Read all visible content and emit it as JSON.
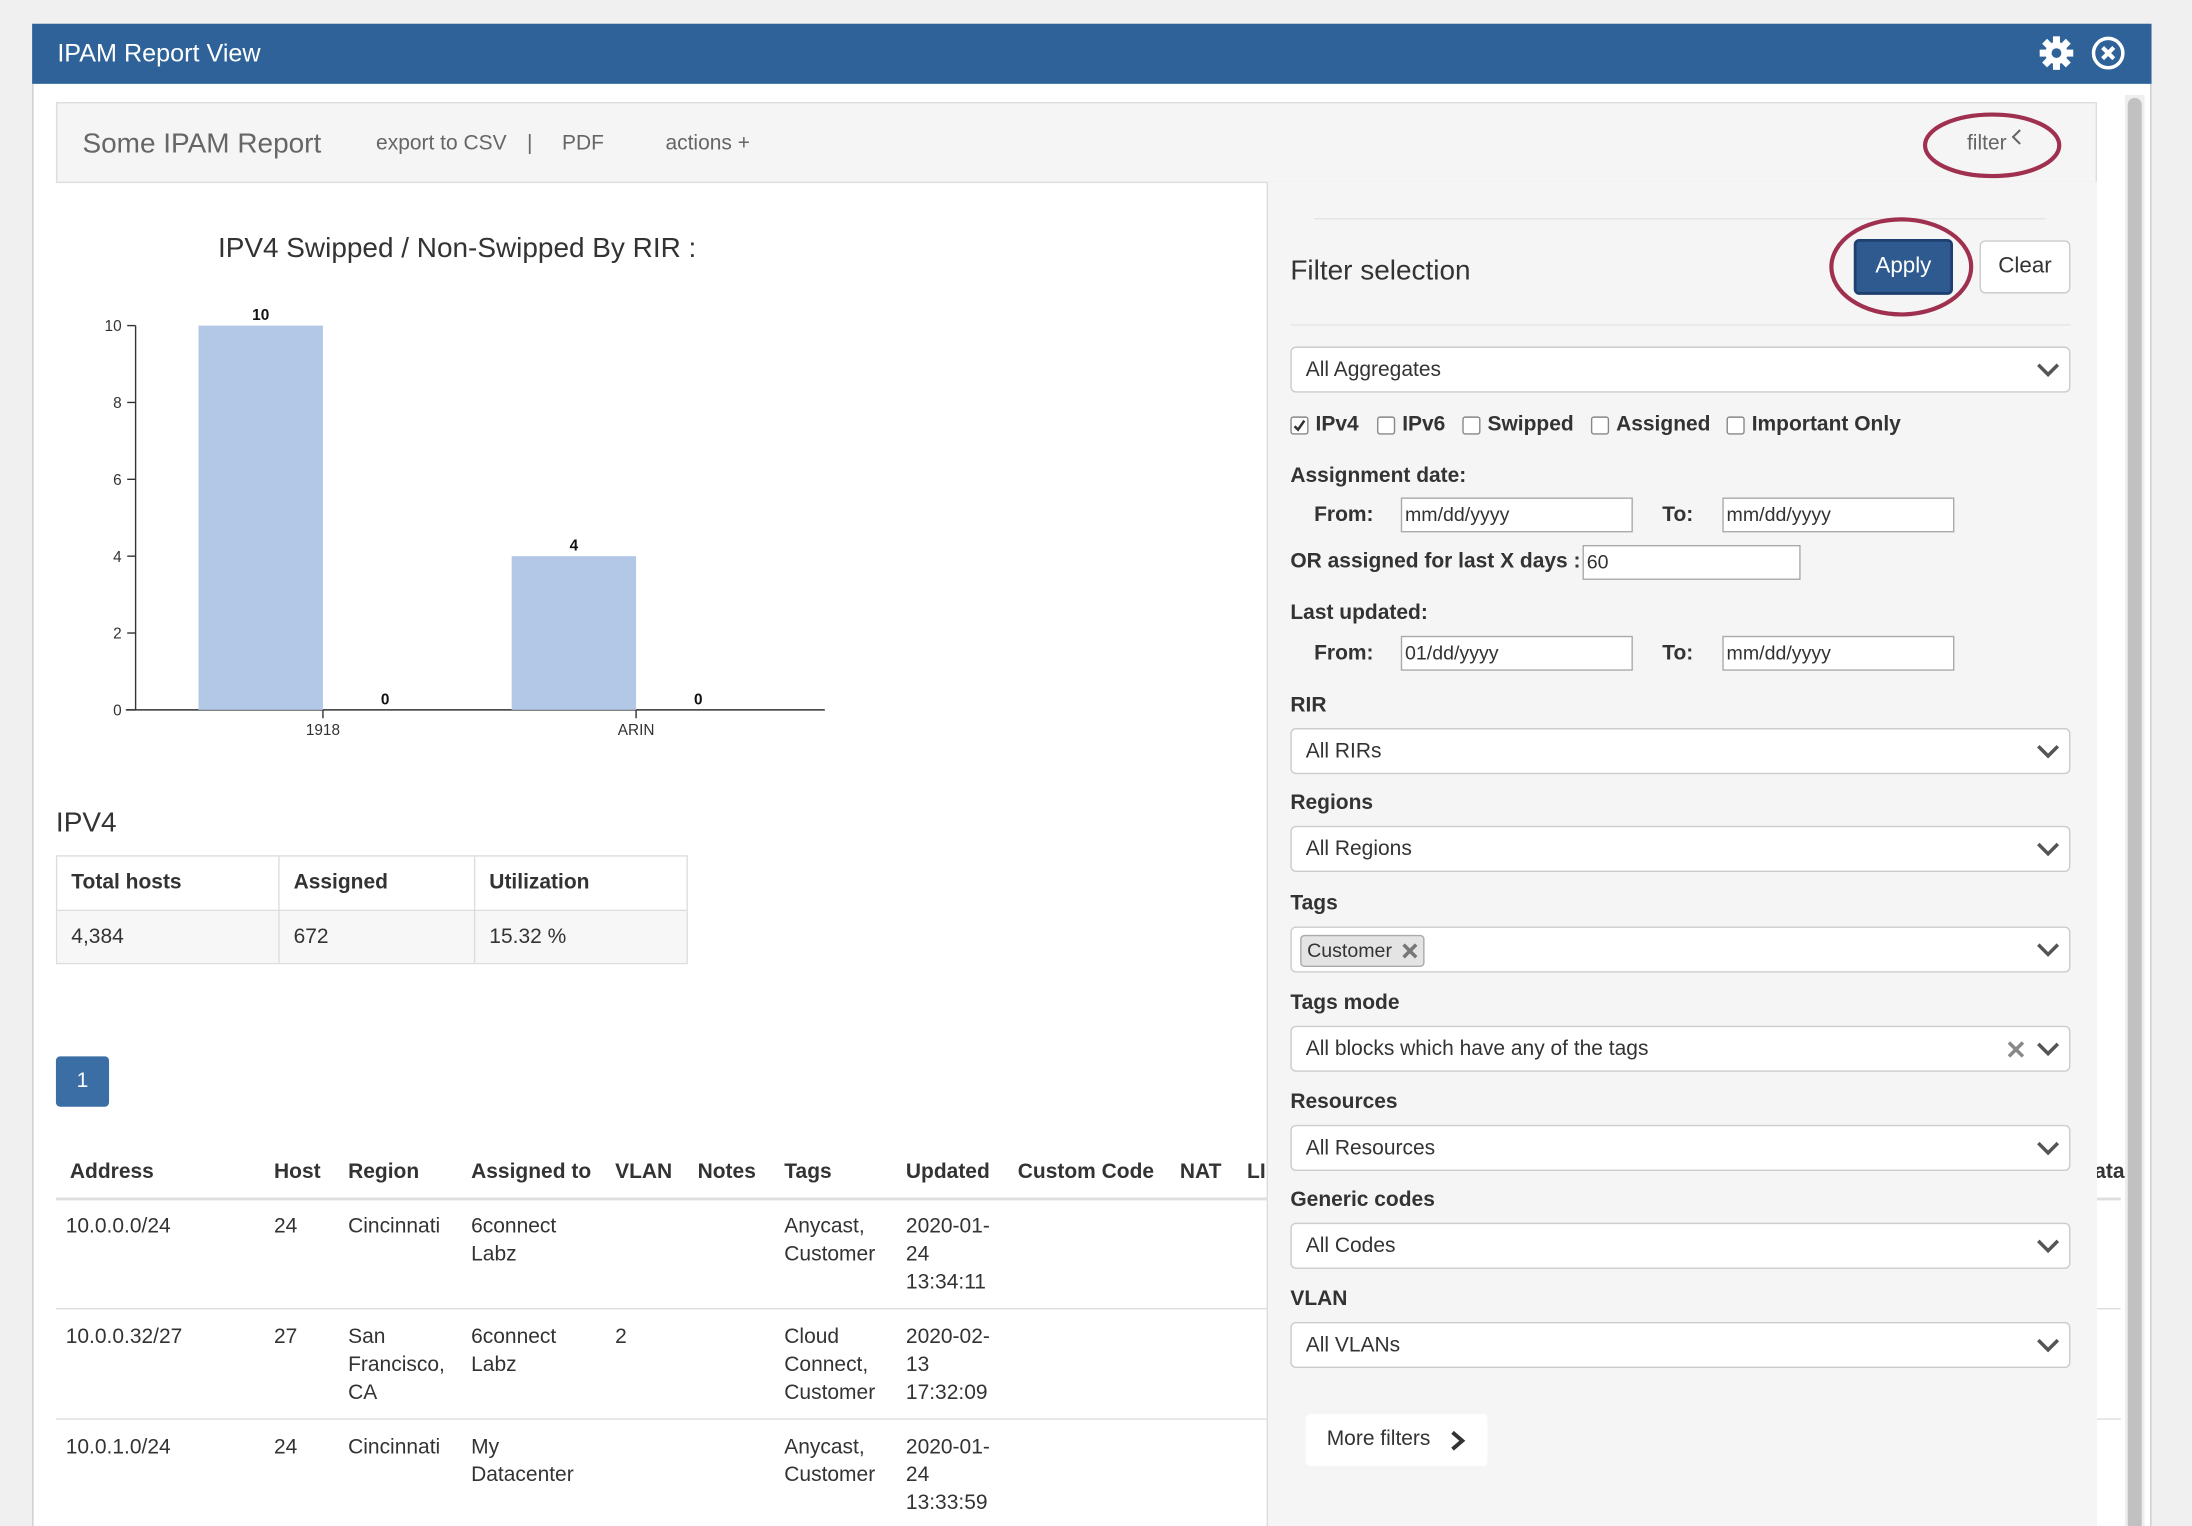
{
  "header": {
    "title": "IPAM Report View"
  },
  "toolbar": {
    "report_name": "Some IPAM Report",
    "export_csv": "export to CSV",
    "separator": "|",
    "pdf": "PDF",
    "actions": "actions +",
    "filter": "filter"
  },
  "chart_data": {
    "type": "bar",
    "title": "IPV4 Swipped / Non-Swipped By RIR :",
    "categories": [
      "1918",
      "ARIN"
    ],
    "series": [
      {
        "color": "#b3c7e6",
        "values": [
          10,
          4
        ]
      },
      {
        "color": "#b3c7e6",
        "values": [
          0,
          0
        ]
      }
    ],
    "ylim": [
      0,
      10
    ],
    "yticks": [
      0,
      2,
      4,
      6,
      8,
      10
    ]
  },
  "summary": {
    "title": "IPV4",
    "columns": [
      "Total hosts",
      "Assigned",
      "Utilization"
    ],
    "rows": [
      [
        "4,384",
        "672",
        "15.32 %"
      ]
    ]
  },
  "pagination": {
    "pages": [
      "1"
    ]
  },
  "table": {
    "columns": [
      "Address",
      "Host",
      "Region",
      "Assigned to",
      "VLAN",
      "Notes",
      "Tags",
      "Updated",
      "Custom Code",
      "NAT",
      "LI",
      "ata"
    ],
    "rows": [
      {
        "address": "10.0.0.0/24",
        "host": "24",
        "region": "Cincinnati",
        "assigned_to": "6connect Labz",
        "tags": "Anycast, Customer",
        "updated": "2020-01-24 13:34:11"
      },
      {
        "address": "10.0.0.32/27",
        "host": "27",
        "region": "San Francisco, CA",
        "assigned_to": "6connect Labz",
        "vlan": "2",
        "tags": "Cloud Connect, Customer",
        "updated": "2020-02-13 17:32:09"
      },
      {
        "address": "10.0.1.0/24",
        "host": "24",
        "region": "Cincinnati",
        "assigned_to": "My Datacenter",
        "tags": "Anycast, Customer",
        "updated": "2020-01-24 13:33:59"
      }
    ]
  },
  "filter": {
    "title": "Filter selection",
    "apply": "Apply",
    "clear": "Clear",
    "aggregates": "All Aggregates",
    "checkboxes": [
      {
        "label": "IPv4",
        "checked": true
      },
      {
        "label": "IPv6",
        "checked": false
      },
      {
        "label": "Swipped",
        "checked": false
      },
      {
        "label": "Assigned",
        "checked": false
      },
      {
        "label": "Important Only",
        "checked": false
      }
    ],
    "assignment_date": {
      "label": "Assignment date:",
      "from_label": "From:",
      "from": "mm/dd/yyyy",
      "to_label": "To:",
      "to": "mm/dd/yyyy"
    },
    "last_x_days": {
      "label": "OR assigned for last X days :",
      "value": "60"
    },
    "last_updated": {
      "label": "Last updated:",
      "from_label": "From:",
      "from": "01/dd/yyyy",
      "to_label": "To:",
      "to": "mm/dd/yyyy"
    },
    "rir": {
      "label": "RIR",
      "value": "All RIRs"
    },
    "regions": {
      "label": "Regions",
      "value": "All Regions"
    },
    "tags": {
      "label": "Tags",
      "chip": "Customer"
    },
    "tags_mode": {
      "label": "Tags mode",
      "value": "All blocks which have any of the tags"
    },
    "resources": {
      "label": "Resources",
      "value": "All Resources"
    },
    "generic_codes": {
      "label": "Generic codes",
      "value": "All Codes"
    },
    "vlan": {
      "label": "VLAN",
      "value": "All VLANs"
    },
    "more_filters": "More filters"
  }
}
